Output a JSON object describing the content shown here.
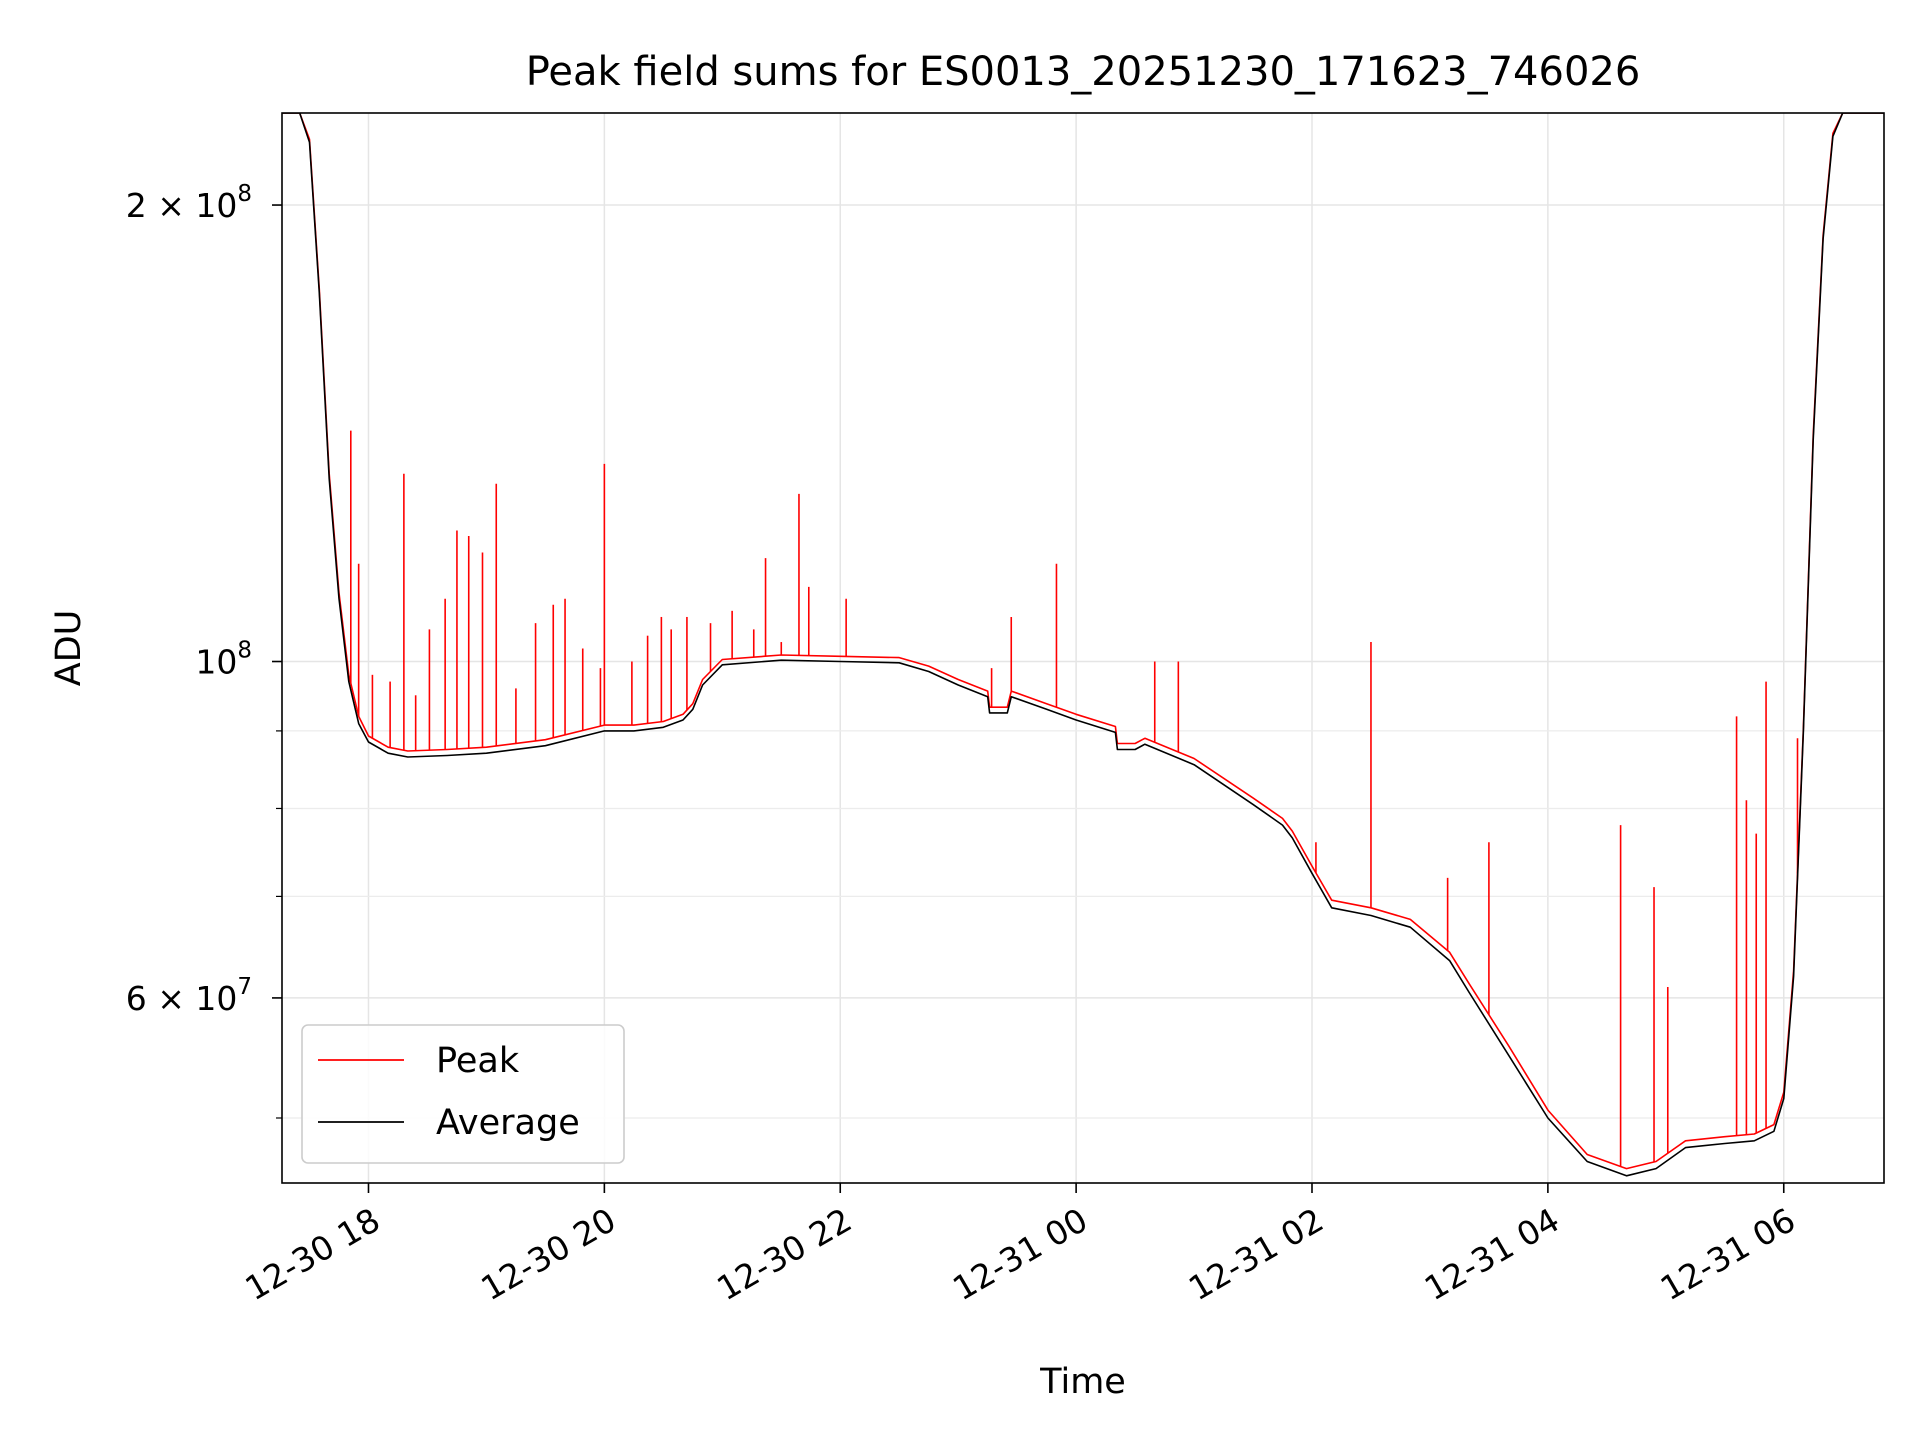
{
  "chart_data": {
    "type": "line",
    "title": "Peak field sums for ES0013_20251230_171623_746026",
    "xlabel": "Time",
    "ylabel": "ADU",
    "y_scale": "log",
    "xlim": [
      "2025-12-30 17:16",
      "2025-12-31 06:51"
    ],
    "ylim": [
      45300000,
      230000000
    ],
    "x_ticks": [
      "12-30 18",
      "12-30 20",
      "12-30 22",
      "12-31 00",
      "12-31 02",
      "12-31 04",
      "12-31 06"
    ],
    "y_ticks": [
      {
        "value": 200000000,
        "base": "2 × 10",
        "exp": "8"
      },
      {
        "value": 100000000,
        "base": "10",
        "exp": "8"
      },
      {
        "value": 60000000,
        "base": "6 × 10",
        "exp": "7"
      }
    ],
    "grid": true,
    "legend_position": "lower-left",
    "series": [
      {
        "name": "Average",
        "color": "#000000",
        "x": [
          "2025-12-30 17:16",
          "2025-12-30 17:25",
          "2025-12-30 17:30",
          "2025-12-30 17:35",
          "2025-12-30 17:40",
          "2025-12-30 17:45",
          "2025-12-30 17:50",
          "2025-12-30 17:55",
          "2025-12-30 18:00",
          "2025-12-30 18:10",
          "2025-12-30 18:20",
          "2025-12-30 18:40",
          "2025-12-30 19:00",
          "2025-12-30 19:30",
          "2025-12-30 20:00",
          "2025-12-30 20:15",
          "2025-12-30 20:30",
          "2025-12-30 20:40",
          "2025-12-30 20:45",
          "2025-12-30 20:50",
          "2025-12-30 21:00",
          "2025-12-30 21:30",
          "2025-12-30 22:00",
          "2025-12-30 22:30",
          "2025-12-30 22:45",
          "2025-12-30 23:00",
          "2025-12-30 23:15",
          "2025-12-30 23:16",
          "2025-12-30 23:25",
          "2025-12-30 23:27",
          "2025-12-30 23:45",
          "2025-12-31 00:00",
          "2025-12-31 00:20",
          "2025-12-31 00:21",
          "2025-12-31 00:30",
          "2025-12-31 00:35",
          "2025-12-31 01:00",
          "2025-12-31 01:30",
          "2025-12-31 01:45",
          "2025-12-31 01:50",
          "2025-12-31 02:00",
          "2025-12-31 02:10",
          "2025-12-31 02:30",
          "2025-12-31 02:50",
          "2025-12-31 03:10",
          "2025-12-31 03:20",
          "2025-12-31 03:40",
          "2025-12-31 04:00",
          "2025-12-31 04:20",
          "2025-12-31 04:40",
          "2025-12-31 04:55",
          "2025-12-31 05:10",
          "2025-12-31 05:30",
          "2025-12-31 05:45",
          "2025-12-31 05:55",
          "2025-12-31 06:00",
          "2025-12-31 06:05",
          "2025-12-31 06:10",
          "2025-12-31 06:15",
          "2025-12-31 06:20",
          "2025-12-31 06:25",
          "2025-12-31 06:30",
          "2025-12-31 06:35",
          "2025-12-31 06:51"
        ],
        "y": [
          230000000,
          230000000,
          220000000,
          175000000,
          132000000,
          110000000,
          97000000,
          91000000,
          88500000,
          87000000,
          86500000,
          86700000,
          87000000,
          88000000,
          90000000,
          90000000,
          90500000,
          91500000,
          93000000,
          96500000,
          99500000,
          100200000,
          100000000,
          99800000,
          98500000,
          96500000,
          94800000,
          92500000,
          92500000,
          94800000,
          93000000,
          91500000,
          89800000,
          87500000,
          87500000,
          88200000,
          85500000,
          80500000,
          78000000,
          76500000,
          72500000,
          68800000,
          68000000,
          66800000,
          63500000,
          60500000,
          55000000,
          50000000,
          46800000,
          45800000,
          46300000,
          47800000,
          48100000,
          48300000,
          49000000,
          51500000,
          62000000,
          90000000,
          140000000,
          190000000,
          222000000,
          230000000,
          230000000,
          230000000
        ]
      },
      {
        "name": "Peak",
        "color": "#ff0000",
        "x": [
          "2025-12-30 17:16",
          "2025-12-30 17:25",
          "2025-12-30 17:30",
          "2025-12-30 17:35",
          "2025-12-30 17:40",
          "2025-12-30 17:45",
          "2025-12-30 17:50",
          "2025-12-30 17:55",
          "2025-12-30 18:00",
          "2025-12-30 18:10",
          "2025-12-30 18:20",
          "2025-12-30 18:40",
          "2025-12-30 19:00",
          "2025-12-30 19:30",
          "2025-12-30 20:00",
          "2025-12-30 20:15",
          "2025-12-30 20:30",
          "2025-12-30 20:40",
          "2025-12-30 20:45",
          "2025-12-30 20:50",
          "2025-12-30 21:00",
          "2025-12-30 21:30",
          "2025-12-30 22:00",
          "2025-12-30 22:30",
          "2025-12-30 22:45",
          "2025-12-30 23:00",
          "2025-12-30 23:15",
          "2025-12-30 23:16",
          "2025-12-30 23:25",
          "2025-12-30 23:27",
          "2025-12-30 23:45",
          "2025-12-31 00:00",
          "2025-12-31 00:20",
          "2025-12-31 00:21",
          "2025-12-31 00:30",
          "2025-12-31 00:35",
          "2025-12-31 01:00",
          "2025-12-31 01:30",
          "2025-12-31 01:45",
          "2025-12-31 01:50",
          "2025-12-31 02:00",
          "2025-12-31 02:10",
          "2025-12-31 02:30",
          "2025-12-31 02:50",
          "2025-12-31 03:10",
          "2025-12-31 03:20",
          "2025-12-31 03:40",
          "2025-12-31 04:00",
          "2025-12-31 04:20",
          "2025-12-31 04:40",
          "2025-12-31 04:55",
          "2025-12-31 05:10",
          "2025-12-31 05:30",
          "2025-12-31 05:45",
          "2025-12-31 05:55",
          "2025-12-31 06:00",
          "2025-12-31 06:05",
          "2025-12-31 06:10",
          "2025-12-31 06:15",
          "2025-12-31 06:20",
          "2025-12-31 06:25",
          "2025-12-31 06:30",
          "2025-12-31 06:35",
          "2025-12-31 06:51"
        ],
        "y": [
          230000000,
          230000000,
          221000000,
          176000000,
          133000000,
          111000000,
          98000000,
          92000000,
          89300000,
          87800000,
          87300000,
          87500000,
          87800000,
          88800000,
          90800000,
          90800000,
          91300000,
          92300000,
          93800000,
          97300000,
          100300000,
          101000000,
          100800000,
          100600000,
          99300000,
          97300000,
          95600000,
          93300000,
          93300000,
          95600000,
          93800000,
          92300000,
          90600000,
          88300000,
          88300000,
          89000000,
          86300000,
          81300000,
          78800000,
          77300000,
          73300000,
          69600000,
          68800000,
          67600000,
          64300000,
          61300000,
          55800000,
          50600000,
          47300000,
          46300000,
          46800000,
          48300000,
          48600000,
          48800000,
          49500000,
          52000000,
          62500000,
          90500000,
          141000000,
          191000000,
          223000000,
          230000000,
          230000000,
          230000000
        ],
        "spikes": [
          {
            "x": "2025-12-30 17:51",
            "y": 142000000
          },
          {
            "x": "2025-12-30 17:55",
            "y": 116000000
          },
          {
            "x": "2025-12-30 18:02",
            "y": 98000000
          },
          {
            "x": "2025-12-30 18:11",
            "y": 97000000
          },
          {
            "x": "2025-12-30 18:18",
            "y": 133000000
          },
          {
            "x": "2025-12-30 18:24",
            "y": 95000000
          },
          {
            "x": "2025-12-30 18:31",
            "y": 105000000
          },
          {
            "x": "2025-12-30 18:39",
            "y": 110000000
          },
          {
            "x": "2025-12-30 18:45",
            "y": 122000000
          },
          {
            "x": "2025-12-30 18:51",
            "y": 121000000
          },
          {
            "x": "2025-12-30 18:58",
            "y": 118000000
          },
          {
            "x": "2025-12-30 19:05",
            "y": 131000000
          },
          {
            "x": "2025-12-30 19:15",
            "y": 96000000
          },
          {
            "x": "2025-12-30 19:25",
            "y": 106000000
          },
          {
            "x": "2025-12-30 19:34",
            "y": 109000000
          },
          {
            "x": "2025-12-30 19:40",
            "y": 110000000
          },
          {
            "x": "2025-12-30 19:49",
            "y": 102000000
          },
          {
            "x": "2025-12-30 19:58",
            "y": 99000000
          },
          {
            "x": "2025-12-30 20:00",
            "y": 135000000
          },
          {
            "x": "2025-12-30 20:14",
            "y": 100000000
          },
          {
            "x": "2025-12-30 20:22",
            "y": 104000000
          },
          {
            "x": "2025-12-30 20:29",
            "y": 107000000
          },
          {
            "x": "2025-12-30 20:34",
            "y": 105000000
          },
          {
            "x": "2025-12-30 20:42",
            "y": 107000000
          },
          {
            "x": "2025-12-30 20:54",
            "y": 106000000
          },
          {
            "x": "2025-12-30 21:05",
            "y": 108000000
          },
          {
            "x": "2025-12-30 21:16",
            "y": 105000000
          },
          {
            "x": "2025-12-30 21:22",
            "y": 117000000
          },
          {
            "x": "2025-12-30 21:30",
            "y": 103000000
          },
          {
            "x": "2025-12-30 21:39",
            "y": 129000000
          },
          {
            "x": "2025-12-30 21:44",
            "y": 112000000
          },
          {
            "x": "2025-12-30 22:03",
            "y": 110000000
          },
          {
            "x": "2025-12-30 23:17",
            "y": 99000000
          },
          {
            "x": "2025-12-30 23:27",
            "y": 107000000
          },
          {
            "x": "2025-12-30 23:50",
            "y": 116000000
          },
          {
            "x": "2025-12-31 00:40",
            "y": 100000000
          },
          {
            "x": "2025-12-31 00:52",
            "y": 100000000
          },
          {
            "x": "2025-12-31 02:02",
            "y": 76000000
          },
          {
            "x": "2025-12-31 02:30",
            "y": 103000000
          },
          {
            "x": "2025-12-31 03:09",
            "y": 72000000
          },
          {
            "x": "2025-12-31 03:30",
            "y": 76000000
          },
          {
            "x": "2025-12-31 04:37",
            "y": 78000000
          },
          {
            "x": "2025-12-31 04:54",
            "y": 71000000
          },
          {
            "x": "2025-12-31 05:01",
            "y": 61000000
          },
          {
            "x": "2025-12-31 05:36",
            "y": 92000000
          },
          {
            "x": "2025-12-31 05:41",
            "y": 81000000
          },
          {
            "x": "2025-12-31 05:46",
            "y": 77000000
          },
          {
            "x": "2025-12-31 05:51",
            "y": 97000000
          },
          {
            "x": "2025-12-31 06:07",
            "y": 89000000
          }
        ]
      }
    ]
  }
}
